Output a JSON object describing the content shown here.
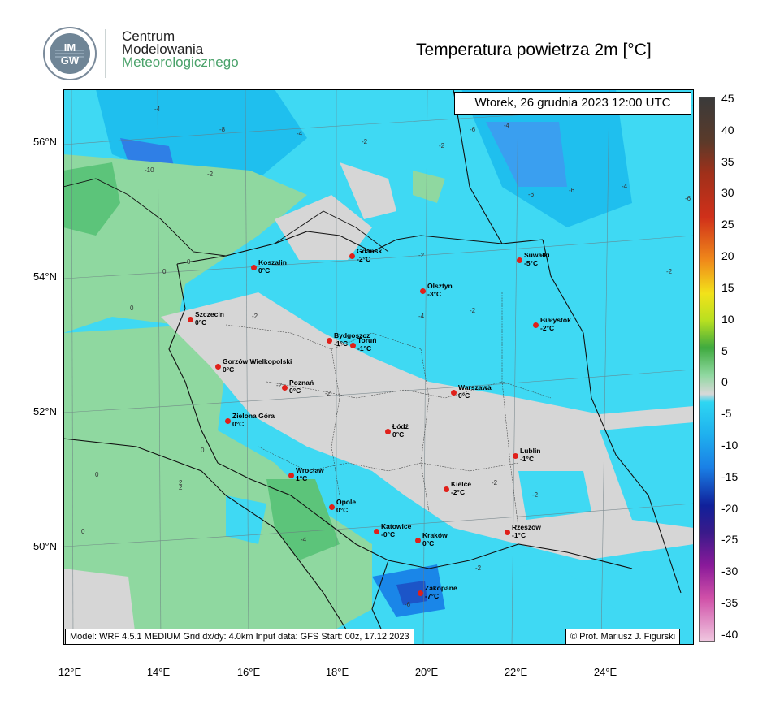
{
  "header": {
    "org_line1": "Centrum",
    "org_line2": "Modelowania",
    "org_line3": "Meteorologicznego",
    "logo_text": "IMGW",
    "title": "Temperatura powietrza 2m [°C]"
  },
  "map": {
    "date_label": "Wtorek, 26 grudnia 2023 12:00 UTC",
    "footer": "Model: WRF 4.5.1 MEDIUM   Grid dx/dy: 4.0km   Input data: GFS   Start: 00z, 17.12.2023",
    "credit": "© Prof. Mariusz J. Figurski",
    "lat_labels": [
      "56°N",
      "54°N",
      "52°N",
      "50°N"
    ],
    "lon_labels": [
      "12°E",
      "14°E",
      "16°E",
      "18°E",
      "20°E",
      "22°E",
      "24°E"
    ],
    "cities": [
      {
        "name": "Koszalin",
        "temp": "0°C"
      },
      {
        "name": "Gdańsk",
        "temp": "-2°C"
      },
      {
        "name": "Suwałki",
        "temp": "-5°C"
      },
      {
        "name": "Olsztyn",
        "temp": "-3°C"
      },
      {
        "name": "Szczecin",
        "temp": "0°C"
      },
      {
        "name": "Białystok",
        "temp": "-2°C"
      },
      {
        "name": "Bydgoszcz",
        "temp": "-1°C"
      },
      {
        "name": "Toruń",
        "temp": "-1°C"
      },
      {
        "name": "Gorzów Wielkopolski",
        "temp": "0°C"
      },
      {
        "name": "Poznań",
        "temp": "0°C"
      },
      {
        "name": "Warszawa",
        "temp": "0°C"
      },
      {
        "name": "Zielona Góra",
        "temp": "0°C"
      },
      {
        "name": "Łódź",
        "temp": "0°C"
      },
      {
        "name": "Lublin",
        "temp": "-1°C"
      },
      {
        "name": "Wrocław",
        "temp": "1°C"
      },
      {
        "name": "Kielce",
        "temp": "-2°C"
      },
      {
        "name": "Opole",
        "temp": "0°C"
      },
      {
        "name": "Katowice",
        "temp": "-0°C"
      },
      {
        "name": "Kraków",
        "temp": "0°C"
      },
      {
        "name": "Rzeszów",
        "temp": "-1°C"
      },
      {
        "name": "Zakopane",
        "temp": "-7°C"
      }
    ],
    "contour_labels": [
      "-4",
      "-8",
      "-4",
      "-2",
      "-10",
      "-2",
      "-6",
      "-6",
      "-4",
      "-2",
      "-2",
      "-2",
      "-4",
      "-6",
      "-2",
      "-4",
      "-6",
      "-2",
      "-2",
      "-2",
      "-2",
      "-2",
      "-4",
      "-6",
      "-2",
      "0",
      "0",
      "2",
      "2",
      "0",
      "0",
      "0",
      "0"
    ]
  },
  "colorbar": {
    "ticks": [
      "45",
      "40",
      "35",
      "30",
      "25",
      "20",
      "15",
      "10",
      "5",
      "0",
      "-5",
      "-10",
      "-15",
      "-20",
      "-25",
      "-30",
      "-35",
      "-40"
    ],
    "colors": {
      "warm_top": "#3a3a3a",
      "red": "#d0301a",
      "orange": "#f08a1a",
      "yellow": "#f2e21a",
      "green": "#3faa3f",
      "light_green": "#8fd8a0",
      "zero": "#d8d8d8",
      "cyan": "#2ed6f2",
      "blue": "#1a80e6",
      "dark_blue": "#10209a",
      "purple": "#8a1a9a",
      "pink": "#f0b8d8"
    }
  }
}
